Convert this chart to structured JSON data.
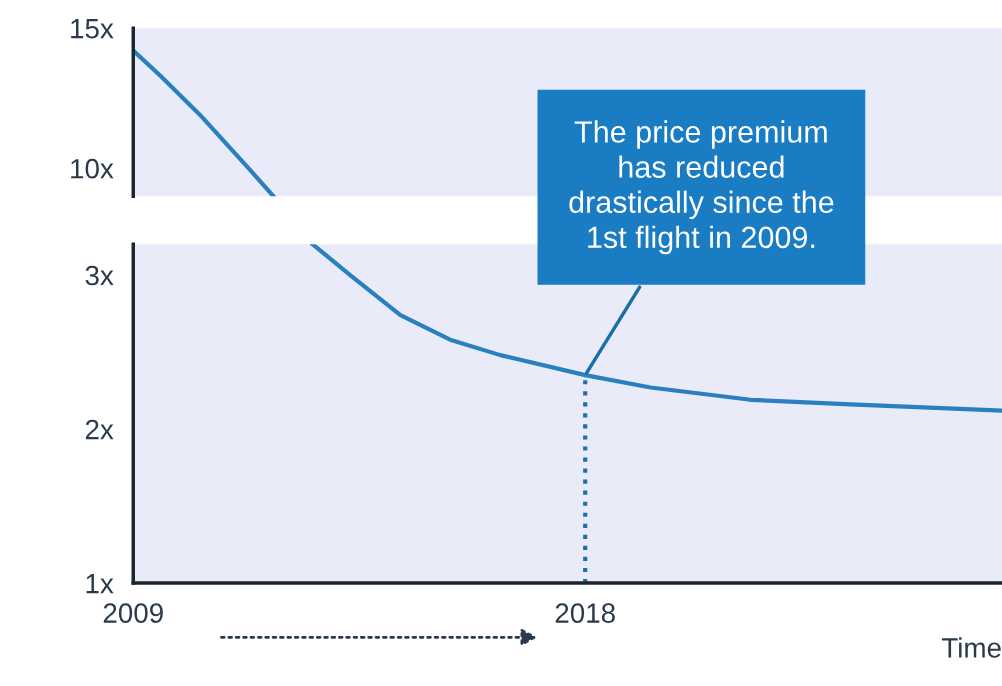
{
  "chart_data": [
    {
      "type": "line",
      "x": [
        2009,
        2009.54,
        2010.33,
        2011.33,
        2011.79
      ],
      "series": [
        {
          "color": "#2a7fc0",
          "values": [
            14.2,
            13.3,
            11.9,
            9.93,
            9
          ]
        }
      ],
      "xlim": [
        2009,
        2026.3
      ],
      "ylim": [
        9,
        15
      ],
      "yticks": [
        {
          "value": 10,
          "label": "10x"
        },
        {
          "value": 15,
          "label": "15x"
        }
      ],
      "tick_labels": "y",
      "grid": false,
      "marker": "none",
      "line_style": "solid"
    },
    {
      "type": "line",
      "xlabel": "Time",
      "x": [
        2012.57,
        2013.32,
        2014.32,
        2015.31,
        2016.31,
        2018,
        2019.3,
        2021.29,
        2023.28,
        2026.3
      ],
      "series": [
        {
          "color": "#2a7fc0",
          "values": [
            3.2,
            3,
            2.74,
            2.58,
            2.48,
            2.35,
            2.27,
            2.19,
            2.16,
            2.12
          ]
        }
      ],
      "xlim": [
        2009,
        2026.3
      ],
      "xticks": [
        2009,
        2018
      ],
      "ylim": [
        1,
        3.2
      ],
      "yticks": [
        {
          "value": 1,
          "label": "1x"
        },
        {
          "value": 2,
          "label": "2x"
        },
        {
          "value": 3,
          "label": "3x"
        }
      ],
      "ref_lines": [
        {
          "axis": "x",
          "value": 2018,
          "color": "#1f6fa8",
          "line_style": "dotted"
        }
      ],
      "annotations": [
        {
          "text": "The price premium\nhas reduced\ndrastically since the\n1st flight in 2009.",
          "x": 2018,
          "y": 2.35
        }
      ],
      "grid": false,
      "marker": "none",
      "line_style": "solid"
    }
  ]
}
